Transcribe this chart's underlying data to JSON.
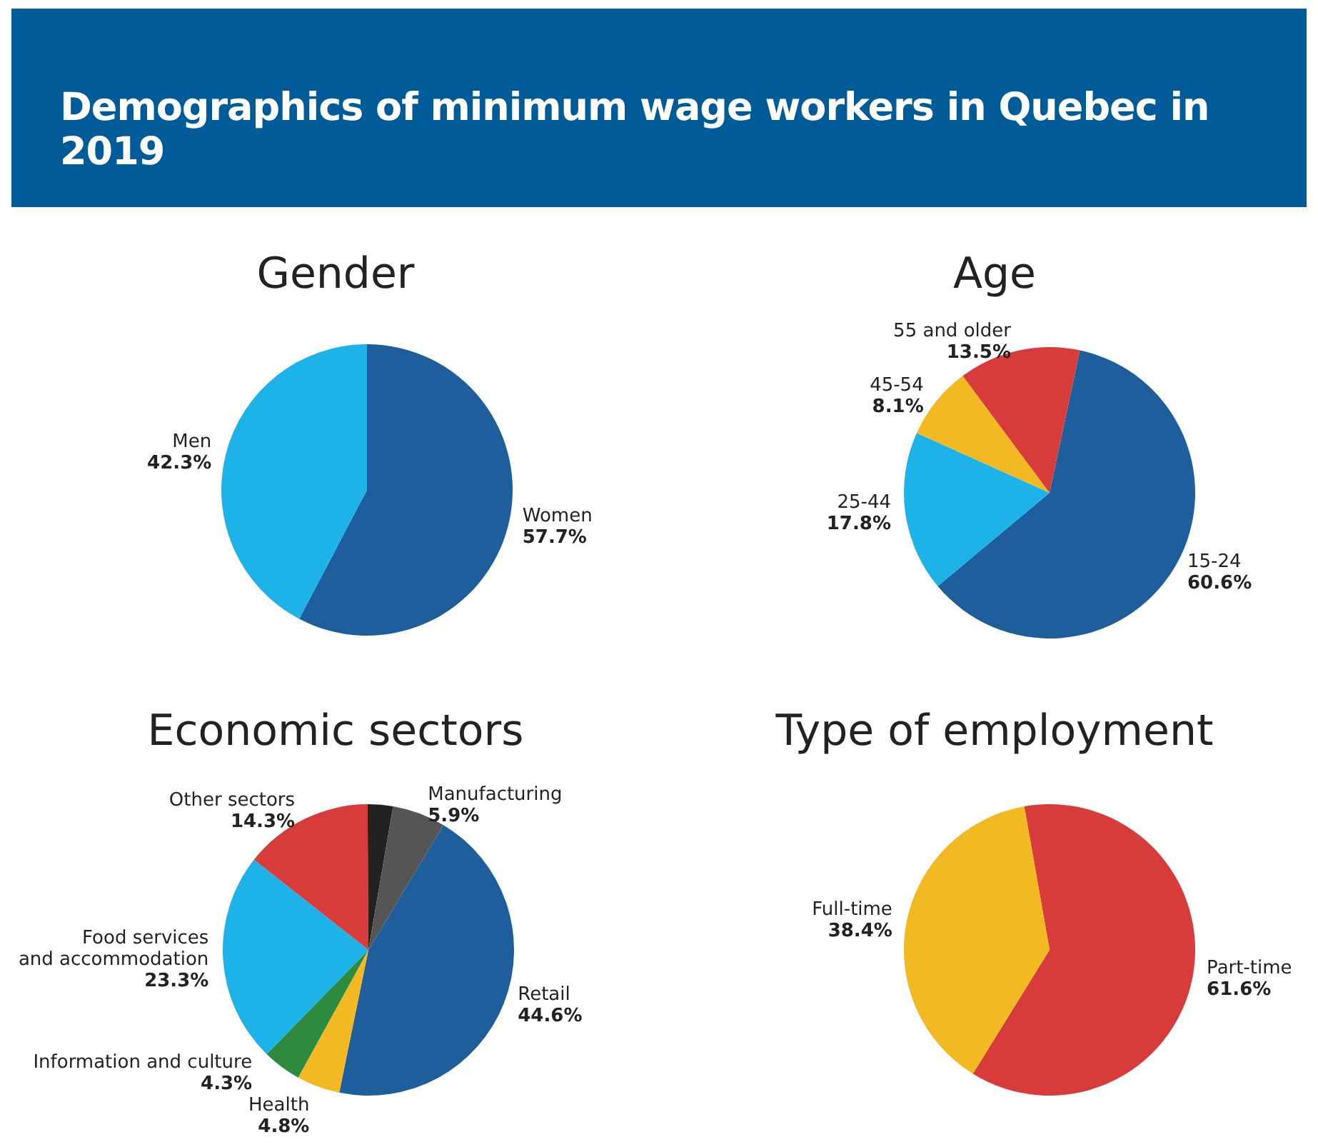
{
  "chart_data": [
    {
      "type": "other",
      "title": "Demographics of minimum wage workers in Quebec in 2019"
    },
    {
      "type": "pie",
      "title": "Gender",
      "categories": [
        "Women",
        "Men"
      ],
      "values": [
        57.7,
        42.3
      ],
      "colors": [
        "#1f5e9c",
        "#1eb3e8"
      ],
      "value_labels": [
        "57.7%",
        "42.3%"
      ]
    },
    {
      "type": "pie",
      "title": "Age",
      "categories": [
        "15-24",
        "25-44",
        "45-54",
        "55 and older"
      ],
      "values": [
        60.6,
        17.8,
        8.1,
        13.5
      ],
      "colors": [
        "#1f5e9c",
        "#1eb3e8",
        "#f2b922",
        "#d83c3a"
      ],
      "value_labels": [
        "60.6%",
        "17.8%",
        "8.1%",
        "13.5%"
      ]
    },
    {
      "type": "pie",
      "title": "Economic sectors",
      "categories": [
        "Retail",
        "Health",
        "Information and culture",
        "Food services\nand accommodation",
        "Other sectors",
        null,
        "Manufacturing"
      ],
      "values": [
        44.6,
        4.8,
        4.3,
        23.3,
        14.3,
        2.8,
        5.9
      ],
      "colors": [
        "#1f5e9c",
        "#f2b922",
        "#2e8b3e",
        "#1eb3e8",
        "#d83c3a",
        "#222222",
        "#555555"
      ],
      "value_labels": [
        "44.6%",
        "4.8%",
        "4.3%",
        "23.3%",
        "14.3%",
        null,
        "5.9%"
      ]
    },
    {
      "type": "pie",
      "title": "Type of employment",
      "categories": [
        "Part-time",
        "Full-time"
      ],
      "values": [
        61.6,
        38.4
      ],
      "colors": [
        "#d83c3a",
        "#f2b922"
      ],
      "value_labels": [
        "61.6%",
        "38.4%"
      ]
    }
  ]
}
